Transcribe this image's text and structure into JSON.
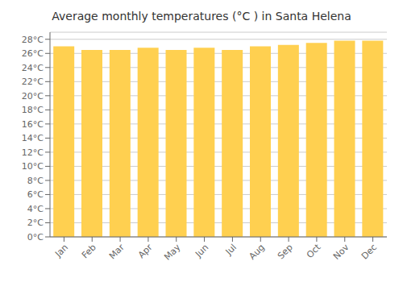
{
  "chart_data": {
    "type": "bar",
    "title": "Average monthly temperatures (°C ) in Santa Helena",
    "categories": [
      "Jan",
      "Feb",
      "Mar",
      "Apr",
      "May",
      "Jun",
      "Jul",
      "Aug",
      "Sep",
      "Oct",
      "Nov",
      "Dec"
    ],
    "values": [
      27.0,
      26.5,
      26.5,
      26.8,
      26.5,
      26.8,
      26.5,
      27.0,
      27.2,
      27.5,
      27.8,
      27.8
    ],
    "color": "#FFD050",
    "ylim": [
      0,
      29
    ],
    "yticks": [
      {
        "value": 0,
        "label": "0°C"
      },
      {
        "value": 2,
        "label": "2°C"
      },
      {
        "value": 4,
        "label": "4°C"
      },
      {
        "value": 6,
        "label": "6°C"
      },
      {
        "value": 8,
        "label": "8°C"
      },
      {
        "value": 10,
        "label": "10°C"
      },
      {
        "value": 12,
        "label": "12°C"
      },
      {
        "value": 14,
        "label": "14°C"
      },
      {
        "value": 16,
        "label": "16°C"
      },
      {
        "value": 18,
        "label": "18°C"
      },
      {
        "value": 20,
        "label": "20°C"
      },
      {
        "value": 22,
        "label": "22°C"
      },
      {
        "value": 24,
        "label": "24°C"
      },
      {
        "value": 26,
        "label": "26°C"
      },
      {
        "value": 28,
        "label": "28°C"
      }
    ],
    "grid": true
  }
}
